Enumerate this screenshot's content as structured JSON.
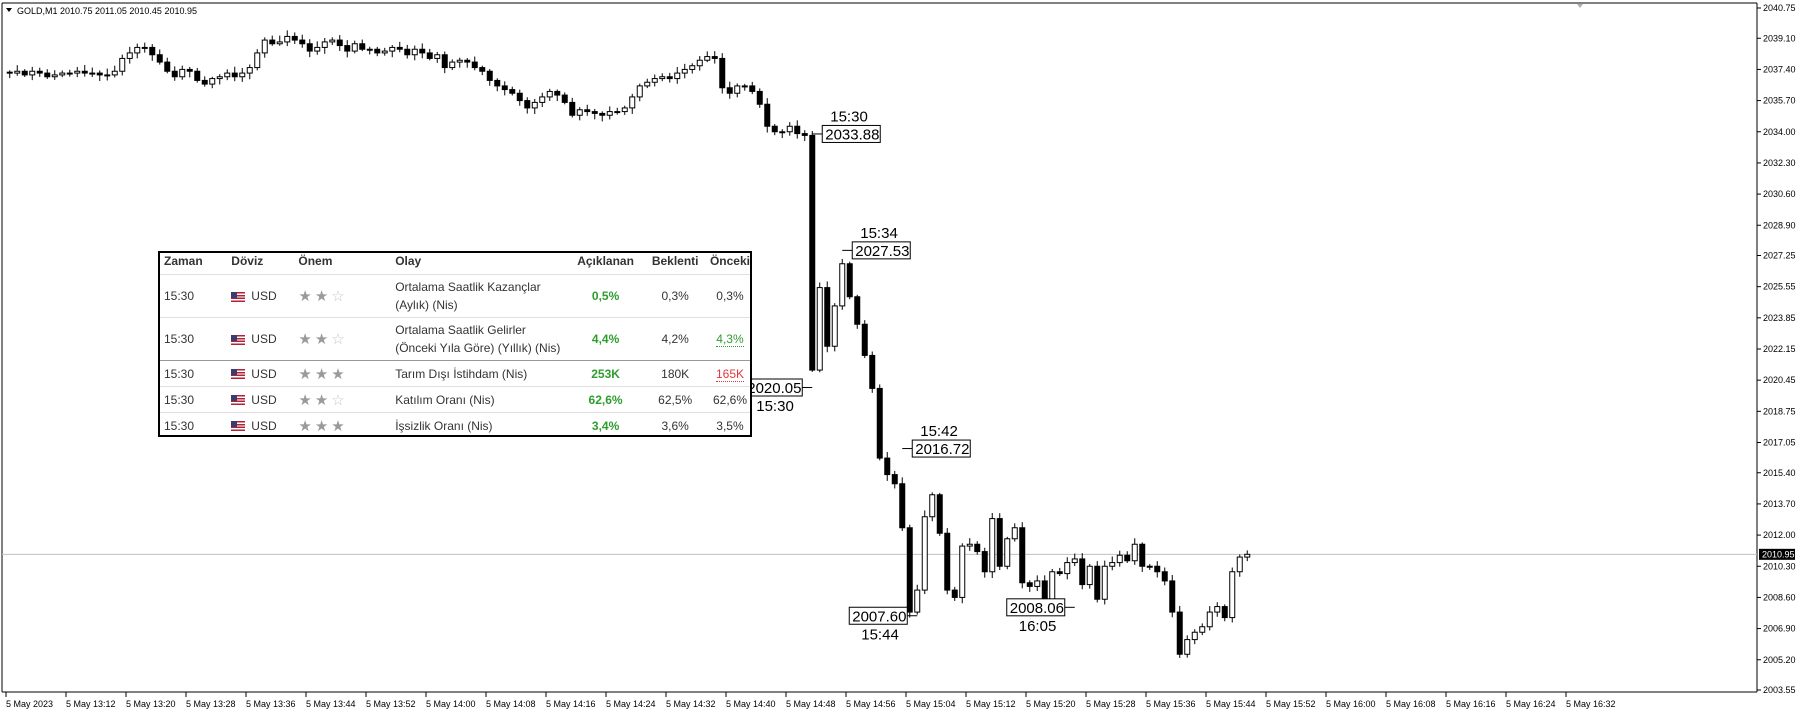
{
  "symbol_header": "GOLD,M1  2010.75 2011.05 2010.45 2010.95",
  "colors": {
    "up": "#ffffff",
    "down": "#000000",
    "wick": "#000000",
    "bid_line": "#c0c0c0",
    "price_tag_bg": "#000000"
  },
  "chart_data": {
    "type": "candlestick",
    "title": "GOLD,M1",
    "y_ticks": [
      "2040.75",
      "2039.10",
      "2037.40",
      "2035.70",
      "2034.00",
      "2032.30",
      "2030.60",
      "2028.90",
      "2027.25",
      "2025.55",
      "2023.85",
      "2022.15",
      "2020.45",
      "2018.75",
      "2017.05",
      "2015.40",
      "2013.70",
      "2012.00",
      "2010.30",
      "2008.60",
      "2006.90",
      "2005.20",
      "2003.55"
    ],
    "ylim": [
      2003.55,
      2040.75
    ],
    "x_ticks": [
      "5 May 2023",
      "5 May 13:12",
      "5 May 13:20",
      "5 May 13:28",
      "5 May 13:36",
      "5 May 13:44",
      "5 May 13:52",
      "5 May 14:00",
      "5 May 14:08",
      "5 May 14:16",
      "5 May 14:24",
      "5 May 14:32",
      "5 May 14:40",
      "5 May 14:48",
      "5 May 14:56",
      "5 May 15:04",
      "5 May 15:12",
      "5 May 15:20",
      "5 May 15:28",
      "5 May 15:36",
      "5 May 15:44",
      "5 May 15:52",
      "5 May 16:00",
      "5 May 16:08",
      "5 May 16:16",
      "5 May 16:24",
      "5 May 16:32"
    ],
    "current_price": "2010.95",
    "annotations": [
      {
        "price": "2033.88",
        "time": "15:30",
        "kind": "high"
      },
      {
        "price": "2020.05",
        "time": "15:30",
        "kind": "low"
      },
      {
        "price": "2027.53",
        "time": "15:34",
        "kind": "high"
      },
      {
        "price": "2016.72",
        "time": "15:42",
        "kind": "high"
      },
      {
        "price": "2007.60",
        "time": "15:44",
        "kind": "low"
      },
      {
        "price": "2008.06",
        "time": "16:05",
        "kind": "low"
      }
    ],
    "closes": [
      2037.2,
      2037.3,
      2037.1,
      2037.3,
      2037.2,
      2037.0,
      2037.1,
      2037.2,
      2037.2,
      2037.3,
      2037.2,
      2037.2,
      2037.1,
      2037.1,
      2037.3,
      2038.0,
      2038.3,
      2038.6,
      2038.6,
      2038.2,
      2037.8,
      2037.3,
      2037.0,
      2037.4,
      2037.3,
      2036.8,
      2036.6,
      2036.9,
      2037.0,
      2037.2,
      2037.0,
      2037.2,
      2037.5,
      2038.3,
      2039.0,
      2038.8,
      2038.9,
      2039.2,
      2039.0,
      2038.8,
      2038.4,
      2038.6,
      2038.9,
      2039.0,
      2038.7,
      2038.4,
      2038.8,
      2038.5,
      2038.5,
      2038.3,
      2038.4,
      2038.6,
      2038.5,
      2038.2,
      2038.5,
      2038.3,
      2038.0,
      2038.2,
      2037.5,
      2037.8,
      2037.9,
      2037.8,
      2037.5,
      2037.3,
      2036.8,
      2036.5,
      2036.3,
      2036.1,
      2035.7,
      2035.3,
      2035.6,
      2035.9,
      2036.2,
      2036.0,
      2035.6,
      2034.9,
      2035.2,
      2035.1,
      2035.0,
      2034.9,
      2035.1,
      2035.1,
      2035.3,
      2035.9,
      2036.5,
      2036.7,
      2036.9,
      2037.0,
      2036.9,
      2037.2,
      2037.4,
      2037.6,
      2037.9,
      2038.1,
      2038.0,
      2036.4,
      2036.1,
      2036.5,
      2036.5,
      2036.2,
      2035.5,
      2034.3,
      2034.0,
      2034.0,
      2034.3,
      2033.9,
      2033.8,
      2021.0,
      2025.5,
      2022.3,
      2024.5,
      2026.8,
      2025.0,
      2023.5,
      2021.8,
      2020.0,
      2016.2,
      2015.3,
      2014.8,
      2012.4,
      2007.8,
      2009.0,
      2013.0,
      2014.2,
      2012.1,
      2009.0,
      2008.6,
      2011.4,
      2011.5,
      2011.1,
      2010.0,
      2012.9,
      2010.3,
      2011.8,
      2012.4,
      2009.4,
      2009.2,
      2009.5,
      2008.3,
      2010.0,
      2009.9,
      2010.5,
      2010.7,
      2009.3,
      2010.3,
      2008.5,
      2010.3,
      2010.5,
      2010.9,
      2010.6,
      2011.5,
      2010.3,
      2010.3,
      2010.0,
      2009.5,
      2007.8,
      2005.5,
      2006.3,
      2006.7,
      2007.0,
      2007.8,
      2008.1,
      2007.5,
      2010.0,
      2010.8,
      2010.95
    ]
  },
  "econ_table": {
    "headers": {
      "time": "Zaman",
      "currency": "Döviz",
      "importance": "Önem",
      "event": "Olay",
      "actual": "Açıklanan",
      "forecast": "Beklenti",
      "previous": "Önceki"
    },
    "rows": [
      {
        "time": "15:30",
        "currency": "USD",
        "stars": 2,
        "event_line1": "Ortalama Saatlik Kazançlar",
        "event_line2": "(Aylık) (Nis)",
        "actual": "0,5%",
        "forecast": "0,3%",
        "previous": "0,3%",
        "prev_style": "plain"
      },
      {
        "time": "15:30",
        "currency": "USD",
        "stars": 2,
        "event_line1": "Ortalama Saatlik Gelirler",
        "event_line2": "(Önceki Yıla Göre) (Yıllık) (Nis)",
        "actual": "4,4%",
        "forecast": "4,2%",
        "previous": "4,3%",
        "prev_style": "green"
      },
      {
        "time": "15:30",
        "currency": "USD",
        "stars": 3,
        "event_line1": "Tarım Dışı İstihdam (Nis)",
        "event_line2": "",
        "actual": "253K",
        "forecast": "180K",
        "previous": "165K",
        "prev_style": "red"
      },
      {
        "time": "15:30",
        "currency": "USD",
        "stars": 2,
        "event_line1": "Katılım Oranı (Nis)",
        "event_line2": "",
        "actual": "62,6%",
        "forecast": "62,5%",
        "previous": "62,6%",
        "prev_style": "plain"
      },
      {
        "time": "15:30",
        "currency": "USD",
        "stars": 3,
        "event_line1": "İşsizlik Oranı (Nis)",
        "event_line2": "",
        "actual": "3,4%",
        "forecast": "3,6%",
        "previous": "3,5%",
        "prev_style": "plain"
      }
    ]
  }
}
